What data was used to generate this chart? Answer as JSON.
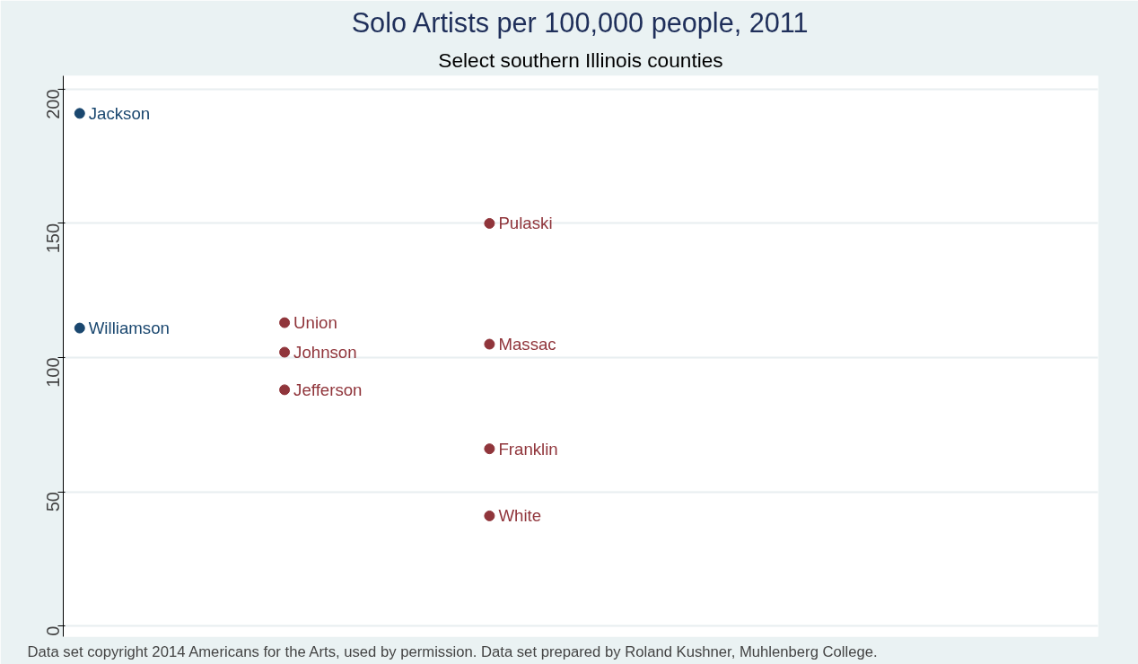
{
  "chart_data": {
    "type": "scatter",
    "title": "Solo Artists per 100,000 people, 2011",
    "subtitle": "Select southern Illinois counties",
    "categories": [
      null,
      null,
      null,
      null,
      null
    ],
    "series": [
      {
        "color": "#1a476f",
        "values": [
          191,
          null,
          null,
          null,
          null
        ],
        "value_labels": [
          "Jackson",
          null,
          null,
          null,
          null
        ]
      },
      {
        "color": "#1a476f",
        "values": [
          111,
          null,
          null,
          null,
          null
        ],
        "value_labels": [
          "Williamson",
          null,
          null,
          null,
          null
        ]
      },
      {
        "color": "#90353b",
        "values": [
          null,
          113,
          150,
          null,
          null
        ],
        "value_labels": [
          null,
          "Union",
          "Pulaski",
          null,
          null
        ]
      },
      {
        "color": "#90353b",
        "values": [
          null,
          102,
          105,
          null,
          null
        ],
        "value_labels": [
          null,
          "Johnson",
          "Massac",
          null,
          null
        ]
      },
      {
        "color": "#90353b",
        "values": [
          null,
          88,
          66,
          null,
          null
        ],
        "value_labels": [
          null,
          "Jefferson",
          "Franklin",
          null,
          null
        ]
      },
      {
        "color": "#90353b",
        "values": [
          null,
          null,
          41,
          null,
          null
        ],
        "value_labels": [
          null,
          null,
          "White",
          null,
          null
        ]
      }
    ],
    "ylim": [
      -4,
      205
    ],
    "yticks": [
      0,
      50,
      100,
      150,
      200
    ],
    "grid": "y",
    "tick_labels": "y",
    "marker": "circle",
    "annotations": [
      "Data set copyright 2014 Americans for the Arts, used by permission.  Data set prepared by Roland Kushner, Muhlenberg College."
    ]
  }
}
